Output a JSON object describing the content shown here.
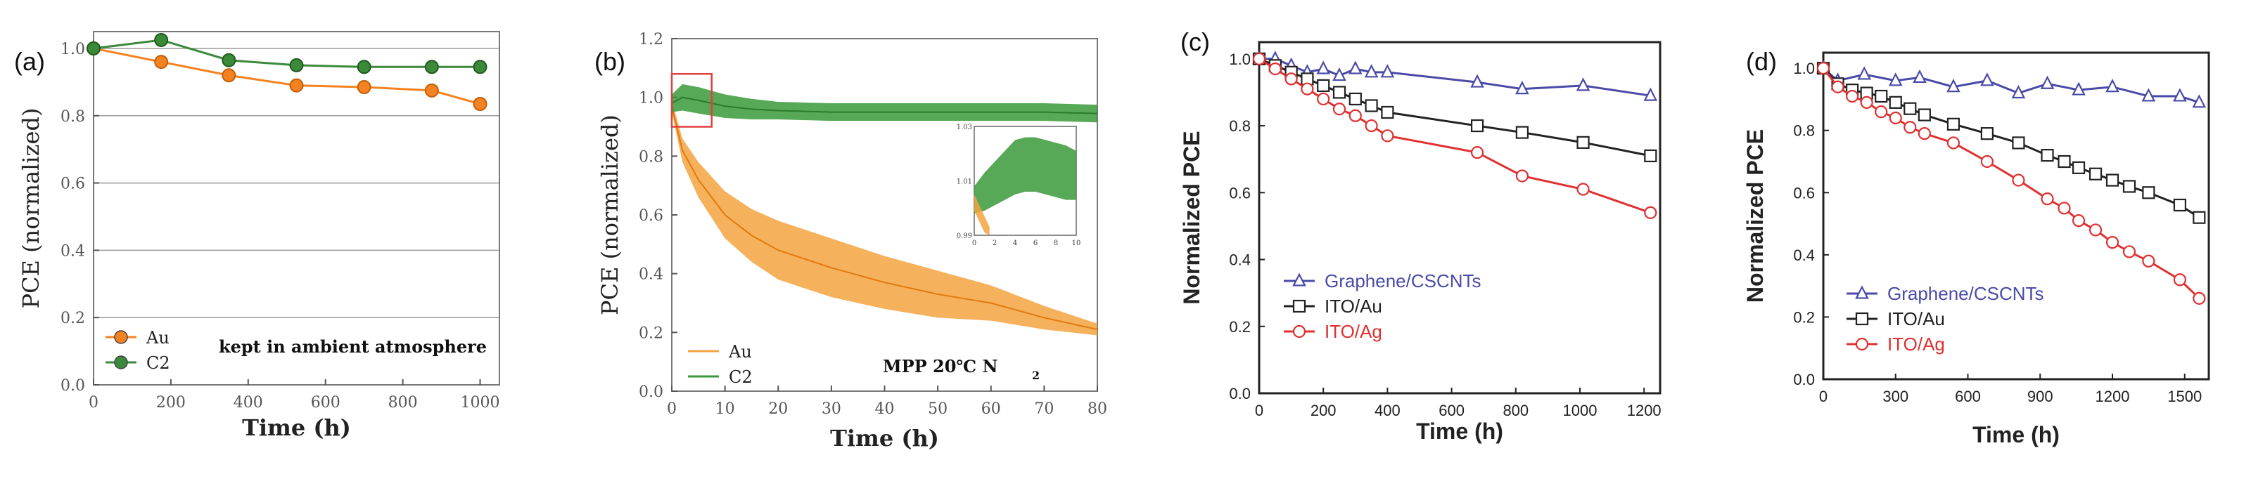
{
  "chart_data": [
    {
      "panel": "(a)",
      "type": "line",
      "xlabel": "Time (h)",
      "ylabel": "PCE (normalized)",
      "xlim": [
        0,
        1050
      ],
      "ylim": [
        0,
        1.05
      ],
      "xticks": [
        "0",
        "200",
        "400",
        "600",
        "800",
        "1000"
      ],
      "yticks": [
        "0.0",
        "0.2",
        "0.4",
        "0.6",
        "0.8",
        "1.0"
      ],
      "grid": true,
      "annotation": "kept in ambient atmosphere",
      "legend_position": "bottom-left",
      "series": [
        {
          "name": "Au",
          "color": "#f58220",
          "x": [
            0,
            175,
            350,
            525,
            700,
            875,
            1000
          ],
          "y": [
            1.0,
            0.96,
            0.92,
            0.89,
            0.885,
            0.875,
            0.835
          ]
        },
        {
          "name": "C2",
          "color": "#3a8a3a",
          "x": [
            0,
            175,
            350,
            525,
            700,
            875,
            1000
          ],
          "y": [
            1.0,
            1.025,
            0.965,
            0.95,
            0.945,
            0.945,
            0.945
          ]
        }
      ]
    },
    {
      "panel": "(b)",
      "type": "area",
      "xlabel": "Time (h)",
      "ylabel": "PCE (normalized)",
      "xlim": [
        0,
        80
      ],
      "ylim": [
        0,
        1.2
      ],
      "xticks": [
        "0",
        "10",
        "20",
        "30",
        "40",
        "50",
        "60",
        "70",
        "80"
      ],
      "yticks": [
        "0.0",
        "0.2",
        "0.4",
        "0.6",
        "0.8",
        "1.0",
        "1.2"
      ],
      "annotation": "MPP  20℃  N",
      "annotation_sub": "2",
      "legend_position": "bottom-left",
      "series": [
        {
          "name": "Au",
          "color": "#f5a340",
          "x": [
            0,
            2,
            5,
            10,
            15,
            20,
            30,
            40,
            50,
            60,
            70,
            80
          ],
          "y": [
            0.97,
            0.82,
            0.72,
            0.6,
            0.53,
            0.48,
            0.42,
            0.37,
            0.33,
            0.3,
            0.25,
            0.21
          ],
          "band": [
            0.02,
            0.04,
            0.06,
            0.08,
            0.09,
            0.1,
            0.1,
            0.09,
            0.08,
            0.06,
            0.04,
            0.02
          ]
        },
        {
          "name": "C2",
          "color": "#3a9a3a",
          "x": [
            0,
            2,
            5,
            10,
            15,
            20,
            30,
            40,
            50,
            60,
            70,
            80
          ],
          "y": [
            0.98,
            1.0,
            0.99,
            0.97,
            0.96,
            0.955,
            0.95,
            0.95,
            0.95,
            0.95,
            0.95,
            0.945
          ],
          "band": [
            0.03,
            0.045,
            0.045,
            0.04,
            0.035,
            0.03,
            0.03,
            0.03,
            0.03,
            0.03,
            0.03,
            0.03
          ]
        }
      ],
      "inset": {
        "xlim": [
          0,
          10
        ],
        "ylim": [
          0.99,
          1.03
        ],
        "xticks": [
          "0",
          "2",
          "4",
          "6",
          "8",
          "10"
        ],
        "yticks": [
          "0.99",
          "1.01",
          "1.03"
        ],
        "series": [
          {
            "name": "C2",
            "color": "#3a9a3a",
            "x": [
              0,
              1,
              2,
              3,
              4,
              5,
              6,
              7,
              8,
              9,
              10
            ],
            "y": [
              1.003,
              1.006,
              1.009,
              1.012,
              1.015,
              1.016,
              1.016,
              1.015,
              1.014,
              1.013,
              1.012
            ],
            "band": [
              0.005,
              0.007,
              0.008,
              0.009,
              0.01,
              0.01,
              0.01,
              0.01,
              0.01,
              0.01,
              0.009
            ]
          },
          {
            "name": "Au",
            "color": "#f5a340",
            "x": [
              0,
              0.5,
              1,
              1.5
            ],
            "y": [
              1.002,
              0.998,
              0.994,
              0.99
            ],
            "band": [
              0.003,
              0.003,
              0.003,
              0.003
            ]
          }
        ]
      }
    },
    {
      "panel": "(c)",
      "type": "line",
      "xlabel": "Time (h)",
      "ylabel": "Normalized PCE",
      "xlim": [
        0,
        1250
      ],
      "ylim": [
        0,
        1.05
      ],
      "xticks": [
        "0",
        "200",
        "400",
        "600",
        "800",
        "1000",
        "1200"
      ],
      "yticks": [
        "0.0",
        "0.2",
        "0.4",
        "0.6",
        "0.8",
        "1.0"
      ],
      "legend_position": "lower-left",
      "series": [
        {
          "name": "Graphene/CSCNTs",
          "color": "#4a4aa8",
          "marker": "triangle",
          "x": [
            0,
            50,
            100,
            150,
            200,
            250,
            300,
            350,
            400,
            680,
            820,
            1010,
            1220
          ],
          "y": [
            1.0,
            1.0,
            0.98,
            0.96,
            0.97,
            0.95,
            0.97,
            0.96,
            0.96,
            0.93,
            0.91,
            0.92,
            0.89
          ]
        },
        {
          "name": "ITO/Au",
          "color": "#222222",
          "marker": "square",
          "x": [
            0,
            50,
            100,
            150,
            200,
            250,
            300,
            350,
            400,
            680,
            820,
            1010,
            1220
          ],
          "y": [
            1.0,
            0.98,
            0.96,
            0.94,
            0.92,
            0.9,
            0.88,
            0.86,
            0.84,
            0.8,
            0.78,
            0.75,
            0.71
          ]
        },
        {
          "name": "ITO/Ag",
          "color": "#e03030",
          "marker": "circle",
          "x": [
            0,
            50,
            100,
            150,
            200,
            250,
            300,
            350,
            400,
            680,
            820,
            1010,
            1220
          ],
          "y": [
            1.0,
            0.97,
            0.94,
            0.91,
            0.88,
            0.85,
            0.83,
            0.8,
            0.77,
            0.72,
            0.65,
            0.61,
            0.54
          ]
        }
      ]
    },
    {
      "panel": "(d)",
      "type": "line",
      "xlabel": "Time (h)",
      "ylabel": "Normalized PCE",
      "xlim": [
        0,
        1600
      ],
      "ylim": [
        0,
        1.05
      ],
      "xticks": [
        "0",
        "300",
        "600",
        "900",
        "1200",
        "1500"
      ],
      "yticks": [
        "0.0",
        "0.2",
        "0.4",
        "0.6",
        "0.8",
        "1.0"
      ],
      "legend_position": "lower-left",
      "series": [
        {
          "name": "Graphene/CSCNTs",
          "color": "#4a4aa8",
          "marker": "triangle",
          "x": [
            0,
            60,
            170,
            300,
            400,
            540,
            680,
            810,
            930,
            1060,
            1200,
            1350,
            1480,
            1560
          ],
          "y": [
            1.0,
            0.96,
            0.98,
            0.96,
            0.97,
            0.94,
            0.96,
            0.92,
            0.95,
            0.93,
            0.94,
            0.91,
            0.91,
            0.89
          ]
        },
        {
          "name": "ITO/Au",
          "color": "#222222",
          "marker": "square",
          "x": [
            0,
            60,
            120,
            180,
            240,
            300,
            360,
            420,
            540,
            680,
            810,
            930,
            1000,
            1060,
            1130,
            1200,
            1270,
            1350,
            1480,
            1560
          ],
          "y": [
            1.0,
            0.95,
            0.93,
            0.92,
            0.91,
            0.89,
            0.87,
            0.85,
            0.82,
            0.79,
            0.76,
            0.72,
            0.7,
            0.68,
            0.66,
            0.64,
            0.62,
            0.6,
            0.56,
            0.52
          ]
        },
        {
          "name": "ITO/Ag",
          "color": "#e03030",
          "marker": "circle",
          "x": [
            0,
            60,
            120,
            180,
            240,
            300,
            360,
            420,
            540,
            680,
            810,
            930,
            1000,
            1060,
            1130,
            1200,
            1270,
            1350,
            1480,
            1560
          ],
          "y": [
            1.0,
            0.94,
            0.91,
            0.89,
            0.86,
            0.84,
            0.81,
            0.79,
            0.76,
            0.7,
            0.64,
            0.58,
            0.55,
            0.51,
            0.48,
            0.44,
            0.41,
            0.38,
            0.32,
            0.26
          ]
        }
      ]
    }
  ]
}
